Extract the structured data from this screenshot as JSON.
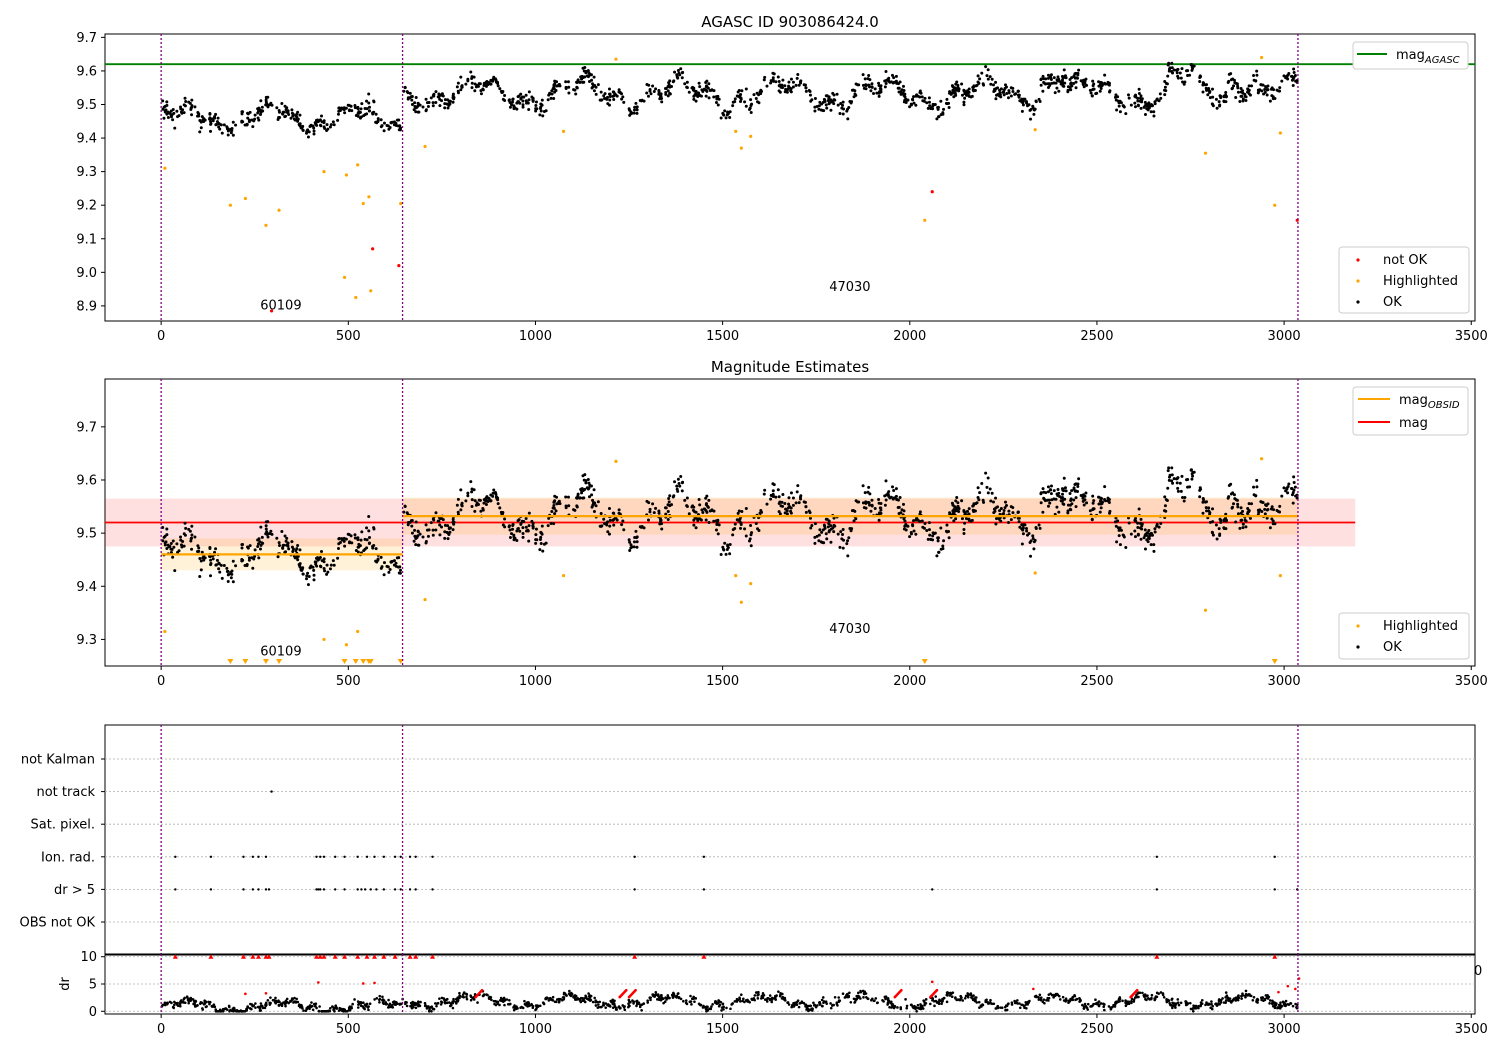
{
  "chart_data": [
    {
      "id": "agasc",
      "type": "scatter",
      "title": "AGASC ID 903086424.0",
      "xlabel": "",
      "ylabel": "",
      "xlim": [
        -150,
        3510
      ],
      "ylim": [
        8.855,
        9.71
      ],
      "xticks": [
        0,
        500,
        1000,
        1500,
        2000,
        2500,
        3000,
        3500
      ],
      "yticks": [
        8.9,
        9.0,
        9.1,
        9.2,
        9.3,
        9.4,
        9.5,
        9.6,
        9.7
      ],
      "ytick_labels": [
        "8.9",
        "9.0",
        "9.1",
        "9.2",
        "9.3",
        "9.4",
        "9.5",
        "9.6",
        "9.7"
      ],
      "grid": false,
      "obs_boundaries": [
        0,
        645,
        3037
      ],
      "obs_labels": [
        {
          "x": 320,
          "y": 8.89,
          "text": "60109"
        },
        {
          "x": 1840,
          "y": 8.945,
          "text": "47030"
        }
      ],
      "lines": [
        {
          "name": "mag_AGASC",
          "label": "mag",
          "subscript": "AGASC",
          "color": "#008000",
          "y": 9.62,
          "x": [
            -150,
            3510
          ]
        }
      ],
      "legend_top": {
        "placement": "top-right",
        "entries": [
          {
            "label": "mag",
            "subscript": "AGASC",
            "color": "#008000"
          }
        ]
      },
      "legend_bottom": {
        "placement": "lower-right",
        "entries": [
          {
            "label": "not OK",
            "color": "#ff0000"
          },
          {
            "label": "Highlighted",
            "color": "#ffa500"
          },
          {
            "label": "OK",
            "color": "#000000"
          }
        ]
      },
      "series": [
        {
          "name": "OK",
          "color": "#000000",
          "generated": "main"
        },
        {
          "name": "Highlighted",
          "color": "#ffa500",
          "points": [
            [
              10,
              9.31
            ],
            [
              185,
              9.2
            ],
            [
              225,
              9.22
            ],
            [
              280,
              9.14
            ],
            [
              315,
              9.185
            ],
            [
              435,
              9.3
            ],
            [
              490,
              8.985
            ],
            [
              495,
              9.29
            ],
            [
              520,
              8.925
            ],
            [
              525,
              9.32
            ],
            [
              540,
              9.205
            ],
            [
              555,
              9.225
            ],
            [
              560,
              8.945
            ],
            [
              640,
              9.205
            ],
            [
              705,
              9.375
            ],
            [
              1075,
              9.42
            ],
            [
              1215,
              9.635
            ],
            [
              1535,
              9.42
            ],
            [
              1550,
              9.37
            ],
            [
              1575,
              9.405
            ],
            [
              2040,
              9.155
            ],
            [
              2335,
              9.425
            ],
            [
              2790,
              9.355
            ],
            [
              2940,
              9.64
            ],
            [
              2975,
              9.2
            ],
            [
              2990,
              9.415
            ]
          ]
        },
        {
          "name": "not OK",
          "color": "#ff0000",
          "points": [
            [
              295,
              8.885
            ],
            [
              565,
              9.07
            ],
            [
              635,
              9.02
            ],
            [
              2060,
              9.24
            ],
            [
              3035,
              9.155
            ]
          ]
        }
      ]
    },
    {
      "id": "estimates",
      "type": "scatter",
      "title": "Magnitude Estimates",
      "xlabel": "",
      "ylabel": "",
      "xlim": [
        -150,
        3510
      ],
      "ylim": [
        9.25,
        9.79
      ],
      "xticks": [
        0,
        500,
        1000,
        1500,
        2000,
        2500,
        3000,
        3500
      ],
      "yticks": [
        9.3,
        9.4,
        9.5,
        9.6,
        9.7
      ],
      "ytick_labels": [
        "9.3",
        "9.4",
        "9.5",
        "9.6",
        "9.7"
      ],
      "grid": false,
      "obs_boundaries": [
        0,
        645,
        3037
      ],
      "obs_labels": [
        {
          "x": 320,
          "y": 9.27,
          "text": "60109"
        },
        {
          "x": 1840,
          "y": 9.312,
          "text": "47030"
        }
      ],
      "mag_band": {
        "x": [
          -150,
          3190
        ],
        "y_center": 9.52,
        "y_low": 9.475,
        "y_high": 9.565,
        "color": "#ff0000"
      },
      "obsid_segments": [
        {
          "x": [
            0,
            645
          ],
          "y": 9.46,
          "y_low": 9.43,
          "y_high": 9.49
        },
        {
          "x": [
            645,
            3037
          ],
          "y": 9.532,
          "y_low": 9.497,
          "y_high": 9.567
        }
      ],
      "legend_top": {
        "placement": "top-right",
        "entries": [
          {
            "label": "mag",
            "subscript": "OBSID",
            "color": "#ffa500"
          },
          {
            "label": "mag",
            "color": "#ff0000"
          }
        ]
      },
      "legend_bottom": {
        "placement": "lower-right",
        "entries": [
          {
            "label": "Highlighted",
            "color": "#ffa500"
          },
          {
            "label": "OK",
            "color": "#000000"
          }
        ]
      },
      "clipped_markers_x": [
        185,
        225,
        280,
        315,
        490,
        520,
        540,
        555,
        560,
        640,
        2040,
        2975
      ],
      "series": [
        {
          "name": "OK",
          "color": "#000000",
          "generated": "main"
        },
        {
          "name": "Highlighted",
          "color": "#ffa500",
          "points": [
            [
              10,
              9.315
            ],
            [
              435,
              9.3
            ],
            [
              495,
              9.29
            ],
            [
              525,
              9.315
            ],
            [
              705,
              9.375
            ],
            [
              1075,
              9.42
            ],
            [
              1215,
              9.635
            ],
            [
              1535,
              9.42
            ],
            [
              1550,
              9.37
            ],
            [
              1575,
              9.405
            ],
            [
              2335,
              9.425
            ],
            [
              2790,
              9.355
            ],
            [
              2940,
              9.64
            ],
            [
              2990,
              9.42
            ]
          ]
        }
      ]
    },
    {
      "id": "flags",
      "type": "scatter",
      "title": "",
      "xlabel": "",
      "ylabel": "",
      "xlim": [
        -150,
        3510
      ],
      "categories": [
        "not Kalman",
        "not track",
        "Sat. pixel.",
        "Ion. rad.",
        "dr > 5",
        "OBS not OK"
      ],
      "grid": true,
      "obs_boundaries": [
        0,
        645,
        3037
      ],
      "series": [
        {
          "name": "not track",
          "values_x": [
            295
          ]
        },
        {
          "name": "Ion. rad.",
          "values_x": [
            38,
            133,
            220,
            245,
            260,
            280,
            415,
            425,
            435,
            465,
            490,
            525,
            550,
            570,
            595,
            625,
            640,
            665,
            680,
            725,
            1265,
            1450,
            2660,
            2975
          ]
        },
        {
          "name": "dr > 5",
          "values_x": [
            38,
            133,
            220,
            245,
            260,
            280,
            288,
            415,
            420,
            425,
            435,
            465,
            490,
            525,
            535,
            545,
            560,
            575,
            595,
            625,
            640,
            665,
            680,
            725,
            1265,
            1450,
            2060,
            2660,
            2975,
            3035
          ]
        }
      ]
    },
    {
      "id": "dr",
      "type": "scatter",
      "title": "",
      "xlabel": "",
      "ylabel": "dr",
      "xlim": [
        -150,
        3510
      ],
      "ylim": [
        -0.5,
        10.5
      ],
      "xticks": [
        0,
        500,
        1000,
        1500,
        2000,
        2500,
        3000,
        3500
      ],
      "yticks": [
        0,
        5,
        10
      ],
      "ytick_labels": [
        "0",
        "5",
        "10"
      ],
      "grid": true,
      "obs_boundaries": [
        0,
        645,
        3037
      ],
      "right_edge_tick_label": "0",
      "series": [
        {
          "name": "OK",
          "color": "#000000",
          "generated": "dr"
        },
        {
          "name": "not OK",
          "color": "#ff0000",
          "capped_x": [
            38,
            133,
            220,
            245,
            260,
            280,
            288,
            415,
            425,
            435,
            465,
            490,
            525,
            550,
            570,
            595,
            625,
            665,
            680,
            725,
            1265,
            1450,
            2660,
            2975
          ],
          "points": [
            [
              420,
              5.3
            ],
            [
              540,
              5.1
            ],
            [
              570,
              5.2
            ],
            [
              280,
              3.3
            ],
            [
              225,
              3.2
            ],
            [
              2060,
              5.4
            ],
            [
              2330,
              4.1
            ],
            [
              2985,
              3.5
            ],
            [
              3010,
              4.6
            ],
            [
              3040,
              6.0
            ],
            [
              3030,
              4.1
            ]
          ]
        }
      ]
    }
  ]
}
